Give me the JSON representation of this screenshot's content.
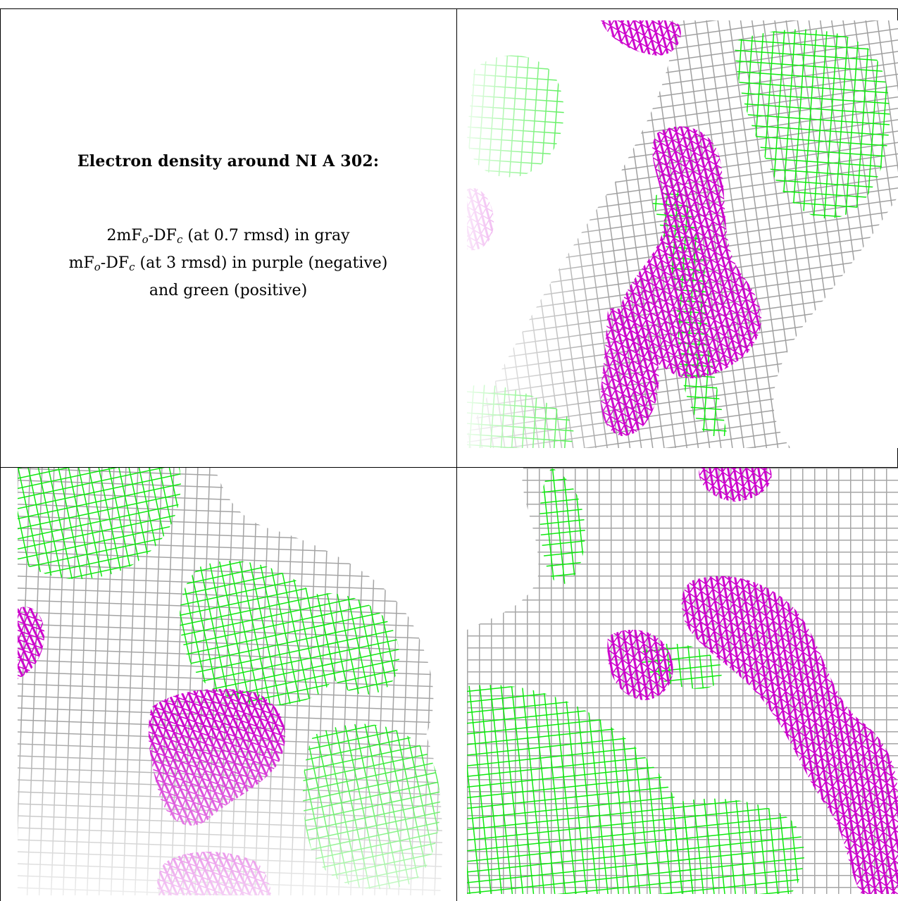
{
  "legend": {
    "title": "Electron density around NI A 302:",
    "line1_parts": [
      "2mF",
      "o",
      "-DF",
      "c",
      " (at 0.7 rmsd) in gray"
    ],
    "line2_parts": [
      "mF",
      "o",
      "-DF",
      "c",
      " (at 3 rmsd) in purple (negative)"
    ],
    "line3": "and green (positive)"
  },
  "colors": {
    "gray_map": "#a8a8a8",
    "negative_difference": "#d400d4",
    "positive_difference": "#00ee00",
    "border": "#000000"
  },
  "panels": [
    {
      "name": "view-1"
    },
    {
      "name": "view-2"
    },
    {
      "name": "view-3"
    }
  ]
}
